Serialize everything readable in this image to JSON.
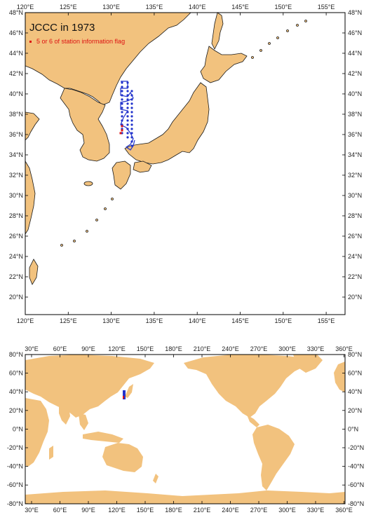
{
  "top_map": {
    "title": "JCCC in 1973",
    "legend": "5 or 6 of station information flag",
    "lon_labels": [
      "120°E",
      "125°E",
      "130°E",
      "135°E",
      "140°E",
      "145°E",
      "150°E",
      "155°E"
    ],
    "lat_labels": [
      "48°N",
      "46°N",
      "44°N",
      "42°N",
      "40°N",
      "38°N",
      "36°N",
      "34°N",
      "32°N",
      "30°N",
      "28°N",
      "26°N",
      "24°N",
      "22°N",
      "20°N"
    ],
    "colors": {
      "land": "#f2c27e",
      "track": "#2233cc",
      "flag": "#dd1111"
    }
  },
  "bottom_map": {
    "lon_labels": [
      "30°E",
      "60°E",
      "90°E",
      "120°E",
      "150°E",
      "180°E",
      "210°E",
      "240°E",
      "270°E",
      "300°E",
      "330°E",
      "360°E"
    ],
    "lat_labels": [
      "80°N",
      "60°N",
      "40°N",
      "20°N",
      "0°N",
      "-20°N",
      "-40°N",
      "-60°N",
      "-80°N"
    ]
  }
}
